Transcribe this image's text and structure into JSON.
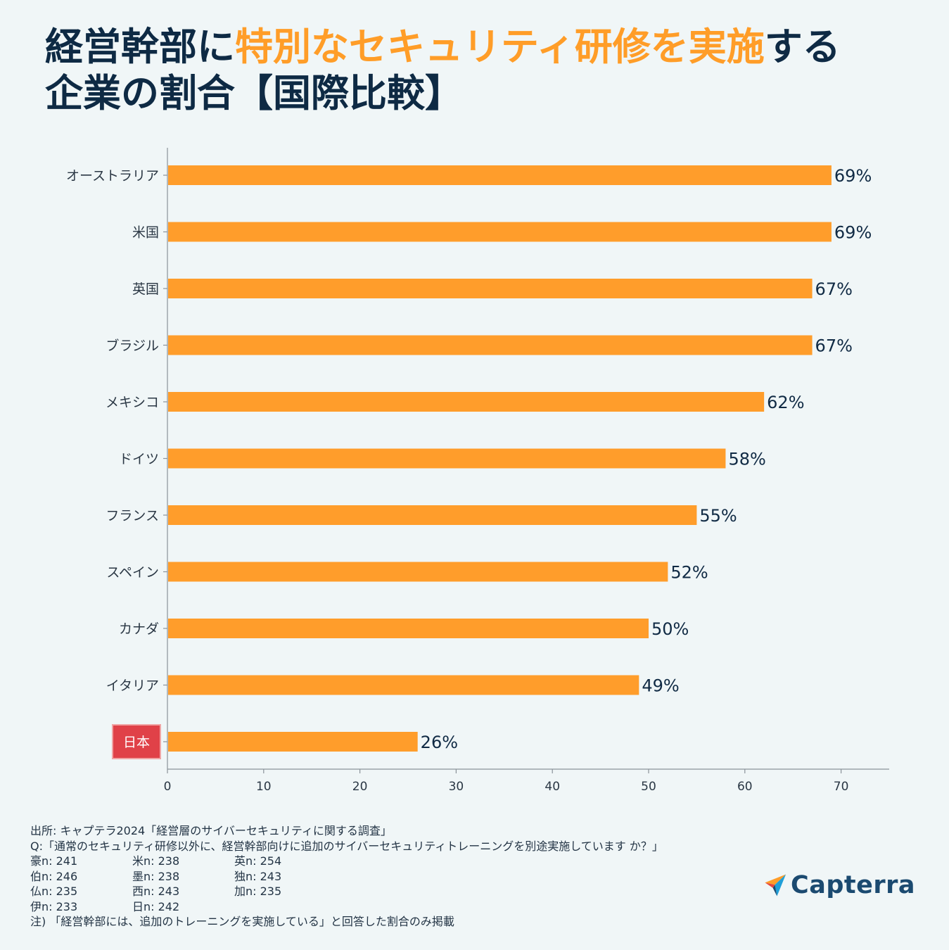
{
  "title": {
    "part1": "経営幹部に",
    "highlight": "特別なセキュリティ研修を実施",
    "part2": "する",
    "line2": "企業の割合【国際比較】"
  },
  "colors": {
    "bar": "#ff9d2b",
    "highlight_label_bg": "#e04148",
    "title": "#0e2a44",
    "title_highlight": "#ff9d28"
  },
  "chart_data": {
    "type": "bar",
    "orientation": "horizontal",
    "categories": [
      "オーストラリア",
      "米国",
      "英国",
      "ブラジル",
      "メキシコ",
      "ドイツ",
      "フランス",
      "スペイン",
      "カナダ",
      "イタリア",
      "日本"
    ],
    "values": [
      69,
      69,
      67,
      67,
      62,
      58,
      55,
      52,
      50,
      49,
      26
    ],
    "value_labels": [
      "69%",
      "69%",
      "67%",
      "67%",
      "62%",
      "58%",
      "55%",
      "52%",
      "50%",
      "49%",
      "26%"
    ],
    "highlighted_category": "日本",
    "xlim": [
      0,
      75
    ],
    "xticks": [
      0,
      10,
      20,
      30,
      40,
      50,
      60,
      70
    ],
    "xlabel": "",
    "ylabel": "",
    "grid": false
  },
  "footer": {
    "source": "出所: キャプテラ2024「経営層のサイバーセキュリティに関する調査」",
    "question": "Q:「通常のセキュリティ研修以外に、経営幹部向けに追加のサイバーセキュリティトレーニングを別途実施しています か？」",
    "samples": [
      "豪n: 241",
      "米n: 238",
      "英n: 254",
      "伯n: 246",
      "墨n: 238",
      "独n: 243",
      "仏n: 235",
      "西n: 243",
      "加n: 235",
      "伊n: 233",
      "日n: 242"
    ],
    "note": "注) 「経営幹部には、追加のトレーニングを実施している」と回答した割合のみ掲載"
  },
  "logo": {
    "text": "Capterra"
  }
}
